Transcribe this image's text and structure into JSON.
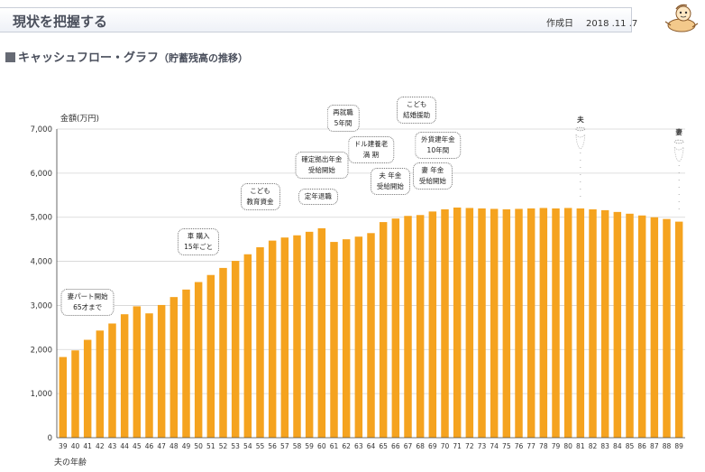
{
  "header": {
    "title": "現状を把握する",
    "created_label": "作成日",
    "created_date": "2018 .11 .7"
  },
  "section": {
    "title": "キャッシュフロー・グラフ",
    "subtitle": "（貯蓄残高の推移）"
  },
  "colors": {
    "bar": "#f5a31f",
    "axis": "#444444",
    "grid": "#d4d4d4"
  },
  "chart_data": {
    "type": "bar",
    "title": "キャッシュフロー・グラフ（貯蓄残高の推移）",
    "ylabel": "金額(万円)",
    "xlabel": "夫の年齢",
    "ylim": [
      0,
      7000
    ],
    "yticks": [
      0,
      1000,
      2000,
      3000,
      4000,
      5000,
      6000,
      7000
    ],
    "ytick_labels": [
      "0",
      "1,000",
      "2,000",
      "3,000",
      "4,000",
      "5,000",
      "6,000",
      "7,000"
    ],
    "categories": [
      "39",
      "40",
      "41",
      "42",
      "43",
      "44",
      "45",
      "46",
      "47",
      "48",
      "49",
      "50",
      "51",
      "52",
      "53",
      "54",
      "55",
      "56",
      "57",
      "58",
      "59",
      "60",
      "61",
      "62",
      "63",
      "64",
      "65",
      "66",
      "67",
      "68",
      "69",
      "70",
      "71",
      "72",
      "73",
      "74",
      "75",
      "76",
      "77",
      "78",
      "79",
      "80",
      "81",
      "82",
      "83",
      "84",
      "85",
      "86",
      "87",
      "88",
      "89"
    ],
    "values": [
      1830,
      1980,
      2220,
      2430,
      2590,
      2800,
      2980,
      2820,
      3010,
      3190,
      3360,
      3530,
      3690,
      3850,
      4010,
      4160,
      4320,
      4470,
      4540,
      4590,
      4670,
      4750,
      4440,
      4500,
      4560,
      4640,
      4890,
      4970,
      5030,
      5050,
      5130,
      5180,
      5220,
      5210,
      5200,
      5190,
      5180,
      5190,
      5200,
      5210,
      5200,
      5210,
      5200,
      5180,
      5160,
      5120,
      5080,
      5040,
      5000,
      4960,
      4900
    ],
    "annotations": [
      {
        "age": "41",
        "text": "妻パート開始\n65才まで"
      },
      {
        "age": "50",
        "text": "車 購入\n15年ごと"
      },
      {
        "age": "55",
        "text": "こども\n教育資金"
      },
      {
        "age": "60",
        "text": "確定拠出年金\n受給開始"
      },
      {
        "age": "60",
        "text": "定年退職"
      },
      {
        "age": "61",
        "text": "再就職\n5年間"
      },
      {
        "age": "64",
        "text": "ドル建養老\n満 期"
      },
      {
        "age": "66",
        "text": "夫 年金\n受給開始"
      },
      {
        "age": "68",
        "text": "こども\n結婚援助"
      },
      {
        "age": "69",
        "text": "外貨建年金\n10年間"
      },
      {
        "age": "69",
        "text": "妻 年金\n受給開始"
      }
    ],
    "death_markers": [
      {
        "age": "81",
        "label": "夫"
      },
      {
        "age": "89",
        "label": "妻"
      }
    ]
  }
}
